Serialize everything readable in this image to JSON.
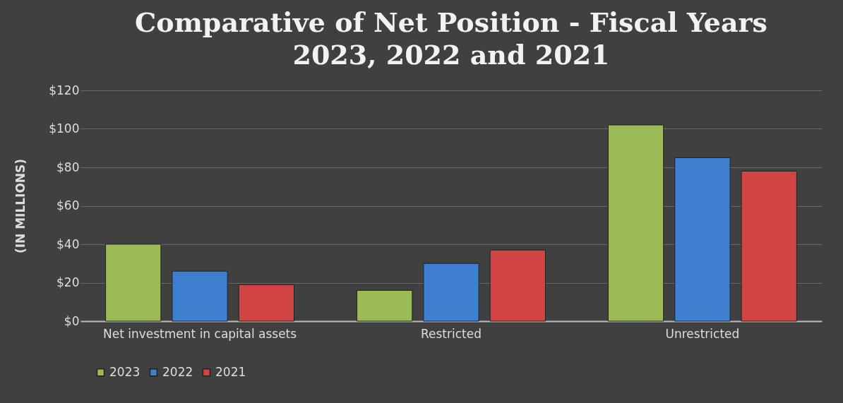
{
  "chart_data": {
    "type": "bar",
    "title": "Comparative of Net Position - Fiscal Years 2023, 2022 and 2021",
    "ylabel": "(IN MILLIONS)",
    "categories": [
      "Net investment in capital assets",
      "Restricted",
      "Unrestricted"
    ],
    "series": [
      {
        "name": "2023",
        "color": "#9bbb59",
        "values": [
          40,
          16,
          102
        ]
      },
      {
        "name": "2022",
        "color": "#3f7fcf",
        "values": [
          26,
          30,
          85
        ]
      },
      {
        "name": "2021",
        "color": "#d24444",
        "values": [
          19,
          37,
          78
        ]
      }
    ],
    "ylim": [
      0,
      120
    ],
    "yticks": [
      {
        "value": 0,
        "label": "$0"
      },
      {
        "value": 20,
        "label": "$20"
      },
      {
        "value": 40,
        "label": "$40"
      },
      {
        "value": 60,
        "label": "$60"
      },
      {
        "value": 80,
        "label": "$80"
      },
      {
        "value": 100,
        "label": "$100"
      },
      {
        "value": 120,
        "label": "$120"
      }
    ],
    "grid": "y",
    "legend": "bottom"
  }
}
